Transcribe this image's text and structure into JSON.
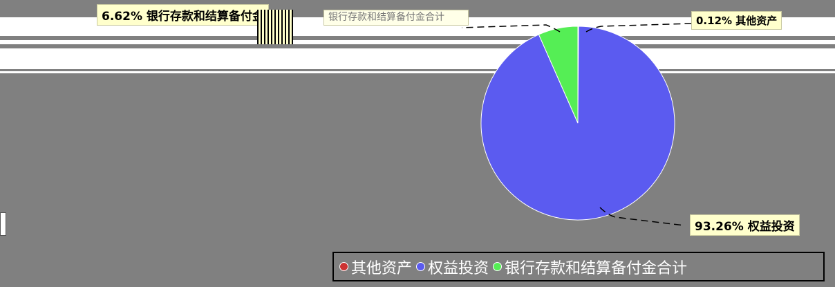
{
  "chart_data": {
    "type": "pie",
    "slices": [
      {
        "name": "其他资产",
        "percent": 0.12,
        "label": "0.12% 其他资产",
        "color": "#cc3333"
      },
      {
        "name": "权益投资",
        "percent": 93.26,
        "label": "93.26% 权益投资",
        "color": "#5b5bf0"
      },
      {
        "name": "银行存款和结算备付金合计",
        "percent": 6.62,
        "label": "银行存款和结算备付金合计",
        "color": "#55ee55"
      }
    ],
    "legend": {
      "position": "bottom-right",
      "entries": [
        "其他资产",
        "权益投资",
        "银行存款和结算备付金合计"
      ]
    }
  },
  "label_top_left": "6.62% 银行存款和结算备付金",
  "label_top_mid": "银行存款和结算备付金合计"
}
